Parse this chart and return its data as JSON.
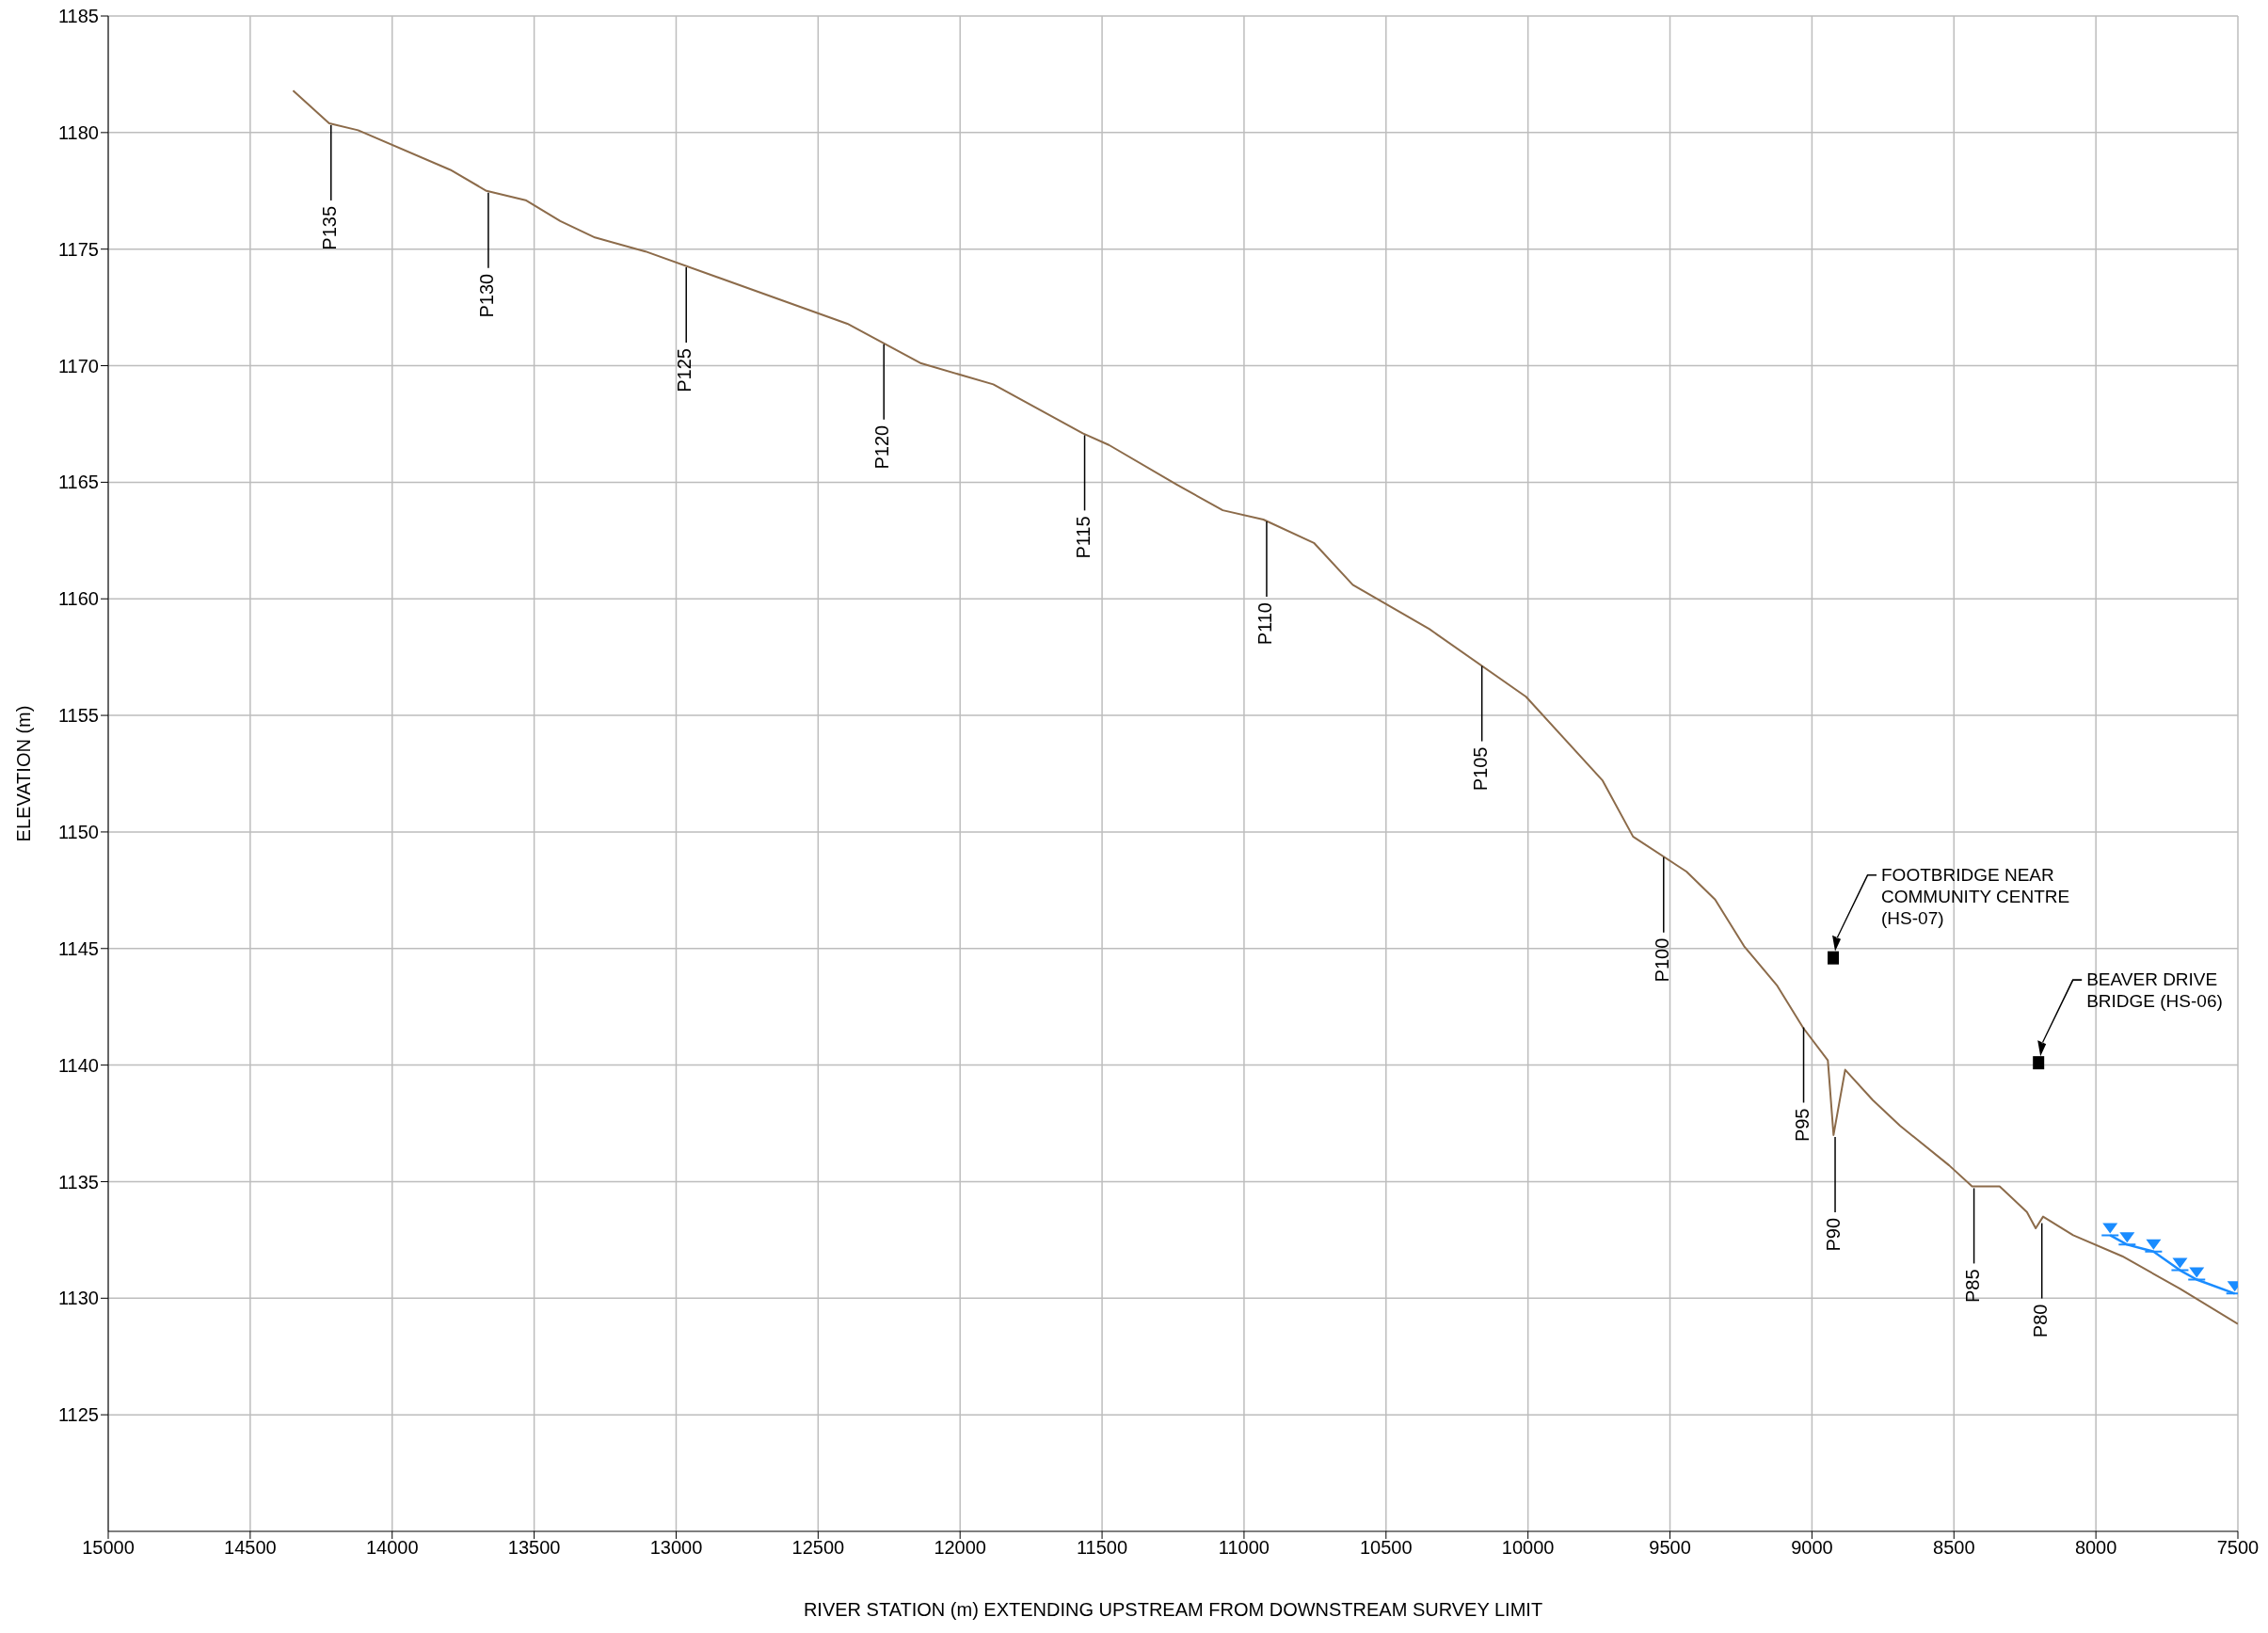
{
  "chart_data": {
    "type": "line",
    "xlabel": "RIVER STATION (m) EXTENDING UPSTREAM FROM DOWNSTREAM SURVEY LIMIT",
    "ylabel": "ELEVATION (m)",
    "xlim": [
      15000,
      7500
    ],
    "xticks": [
      15000,
      14500,
      14000,
      13500,
      13000,
      12500,
      12000,
      11500,
      11000,
      10500,
      10000,
      9500,
      9000,
      8500,
      8000,
      7500
    ],
    "ylim": [
      1120,
      1185
    ],
    "yticks": [
      1125,
      1130,
      1135,
      1140,
      1145,
      1150,
      1155,
      1160,
      1165,
      1170,
      1175,
      1180,
      1185
    ],
    "grid": true,
    "series": [
      {
        "color": "#8c6b4a",
        "x": [
          14349,
          14222,
          14120,
          13795,
          13668,
          13530,
          13408,
          13286,
          13108,
          12397,
          12137,
          11883,
          11568,
          11476,
          11237,
          11075,
          10932,
          10754,
          10617,
          10347,
          10007,
          9737,
          9630,
          9442,
          9341,
          9239,
          9122,
          9031,
          8944,
          8924,
          8883,
          8786,
          8690,
          8517,
          8436,
          8339,
          8243,
          8212,
          8186,
          8080,
          7907,
          7703,
          7500
        ],
        "values": [
          1181.8,
          1180.4,
          1180.1,
          1178.4,
          1177.5,
          1177.1,
          1176.2,
          1175.5,
          1174.9,
          1171.8,
          1170.1,
          1169.2,
          1167.1,
          1166.6,
          1164.9,
          1163.8,
          1163.4,
          1162.4,
          1160.6,
          1158.7,
          1155.8,
          1152.2,
          1149.8,
          1148.3,
          1147.1,
          1145.1,
          1143.4,
          1141.6,
          1140.2,
          1137.0,
          1139.8,
          1138.5,
          1137.4,
          1135.7,
          1134.8,
          1134.8,
          1133.7,
          1133.0,
          1133.5,
          1132.7,
          1131.8,
          1130.4,
          1128.9
        ]
      },
      {
        "color": "#1a8cff",
        "marker": "triangle",
        "x": [
          7950,
          7890,
          7797,
          7704,
          7645,
          7511
        ],
        "values": [
          1132.7,
          1132.3,
          1132.0,
          1131.2,
          1130.8,
          1130.2
        ]
      },
      {
        "type": "scatter",
        "color": "#000000",
        "marker": "square",
        "x": [
          8925,
          8202
        ],
        "values": [
          1144.6,
          1140.1
        ]
      }
    ],
    "annotations": [
      {
        "text": "P135",
        "x": 14222,
        "y": 1180.4
      },
      {
        "text": "P130",
        "x": 13668,
        "y": 1177.5
      },
      {
        "text": "P125",
        "x": 12971,
        "y": 1174.3
      },
      {
        "text": "P120",
        "x": 12275,
        "y": 1171.0
      },
      {
        "text": "P115",
        "x": 11568,
        "y": 1167.1
      },
      {
        "text": "P110",
        "x": 10927,
        "y": 1163.4
      },
      {
        "text": "P105",
        "x": 10169,
        "y": 1157.2
      },
      {
        "text": "P100",
        "x": 9529,
        "y": 1149.0
      },
      {
        "text": "P95",
        "x": 9036,
        "y": 1141.7
      },
      {
        "text": "P90",
        "x": 8925,
        "y": 1137.0
      },
      {
        "text": "P85",
        "x": 8436,
        "y": 1134.8
      },
      {
        "text": "P80",
        "x": 8197,
        "y": 1133.3
      },
      "FOOTBRIDGE NEAR\nCOMMUNITY CENTRE\n(HS-07)",
      "BEAVER DRIVE\nBRIDGE (HS-06)"
    ]
  }
}
